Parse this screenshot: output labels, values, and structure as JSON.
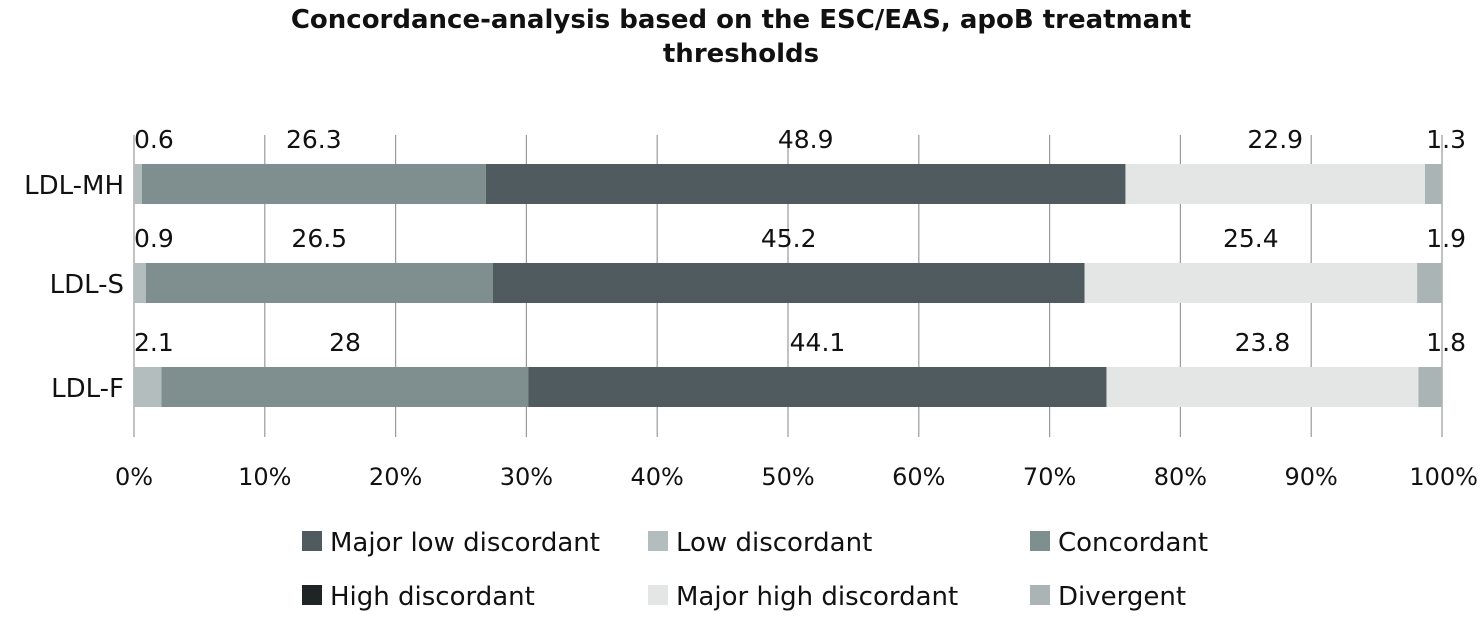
{
  "chart_data": {
    "type": "bar",
    "orientation": "horizontal",
    "stacked": true,
    "stack_percent": true,
    "title": "Concordance-analysis based on the ESC/EAS, apoB treatmant thresholds",
    "title_lines": [
      "Concordance-analysis based on the ESC/EAS, apoB treatmant",
      "thresholds"
    ],
    "categories": [
      "LDL-MH",
      "LDL-S",
      "LDL-F"
    ],
    "segment_order": [
      "Low discordant",
      "Concordant",
      "Major low discordant",
      "Major high discordant",
      "Divergent"
    ],
    "series": [
      {
        "name": "Low discordant",
        "color": "#b3bdbd",
        "values": [
          0.6,
          0.9,
          2.1
        ]
      },
      {
        "name": "Concordant",
        "color": "#7f8e8e",
        "values": [
          26.3,
          26.5,
          28
        ]
      },
      {
        "name": "Major low discordant",
        "color": "#4f5b5f",
        "values": [
          48.9,
          45.2,
          44.1
        ]
      },
      {
        "name": "High discordant",
        "color": "#1f2424",
        "values": [
          0,
          0,
          0
        ]
      },
      {
        "name": "Major high discordant",
        "color": "#e3e6e5",
        "values": [
          22.9,
          25.4,
          23.8
        ]
      },
      {
        "name": "Divergent",
        "color": "#aab4b4",
        "values": [
          1.3,
          1.9,
          1.8
        ]
      }
    ],
    "data_labels": [
      [
        "0.6",
        "26.3",
        "48.9",
        "22.9",
        "1.3"
      ],
      [
        "0.9",
        "26.5",
        "45.2",
        "25.4",
        "1.9"
      ],
      [
        "2.1",
        "28",
        "44.1",
        "23.8",
        "1.8"
      ]
    ],
    "xlim": [
      0,
      100
    ],
    "xticks": [
      "0%",
      "10%",
      "20%",
      "30%",
      "40%",
      "50%",
      "60%",
      "70%",
      "80%",
      "90%",
      "100%"
    ],
    "grid": "vertical",
    "legend_position": "bottom",
    "legend_order": [
      "Major low discordant",
      "Low discordant",
      "Concordant",
      "High discordant",
      "Major high discordant",
      "Divergent"
    ],
    "xlabel": "",
    "ylabel": ""
  }
}
